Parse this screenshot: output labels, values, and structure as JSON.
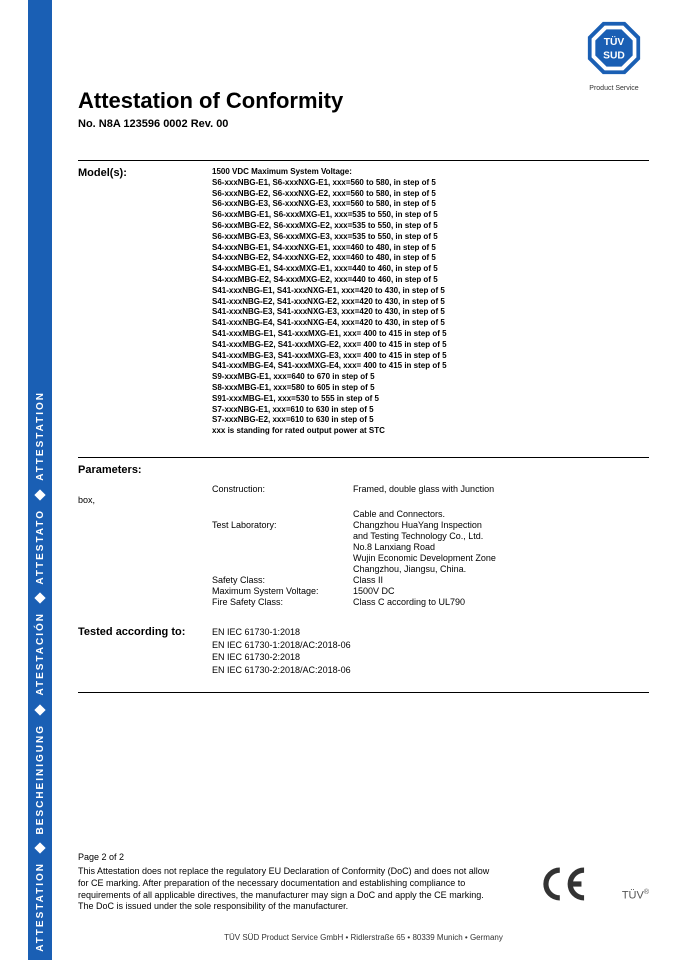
{
  "sideband": {
    "words": [
      "ATTESTATION",
      "BESCHEINIGUNG",
      "ATESTACIÓN",
      "ATTESTATO",
      "ATTESTATION"
    ],
    "bg_color": "#1a5fb4",
    "text_color": "#ffffff"
  },
  "logo": {
    "name": "TÜV SÜD",
    "top": "TÜV",
    "bottom": "SUD",
    "sublabel": "Product Service",
    "octagon_fill": "#1a5fb4",
    "inner_fill": "#ffffff"
  },
  "title": "Attestation of Conformity",
  "doc_number": "No. N8A 123596 0002 Rev. 00",
  "models": {
    "heading": "Model(s):",
    "voltage_line": "1500 VDC Maximum System Voltage:",
    "lines": [
      "S6-xxxNBG-E1, S6-xxxNXG-E1, xxx=560 to 580, in step of 5",
      "S6-xxxNBG-E2, S6-xxxNXG-E2, xxx=560 to 580, in step of 5",
      "S6-xxxNBG-E3, S6-xxxNXG-E3, xxx=560 to 580, in step of 5",
      "S6-xxxMBG-E1, S6-xxxMXG-E1, xxx=535 to 550, in step of 5",
      "S6-xxxMBG-E2, S6-xxxMXG-E2, xxx=535 to 550, in step of 5",
      "S6-xxxMBG-E3, S6-xxxMXG-E3, xxx=535 to 550, in step of 5",
      "S4-xxxNBG-E1, S4-xxxNXG-E1, xxx=460 to 480, in step of 5",
      "S4-xxxNBG-E2, S4-xxxNXG-E2, xxx=460 to 480, in step of 5",
      "S4-xxxMBG-E1, S4-xxxMXG-E1, xxx=440 to 460, in step of 5",
      "S4-xxxMBG-E2, S4-xxxMXG-E2, xxx=440 to 460, in step of 5",
      "S41-xxxNBG-E1, S41-xxxNXG-E1, xxx=420 to 430, in step of 5",
      "S41-xxxNBG-E2, S41-xxxNXG-E2, xxx=420 to 430, in step of 5",
      "S41-xxxNBG-E3, S41-xxxNXG-E3, xxx=420 to 430, in step of 5",
      "S41-xxxNBG-E4, S41-xxxNXG-E4, xxx=420 to 430, in step of 5",
      "S41-xxxMBG-E1, S41-xxxMXG-E1, xxx= 400 to 415 in step of 5",
      "S41-xxxMBG-E2, S41-xxxMXG-E2, xxx= 400 to 415 in step of 5",
      "S41-xxxMBG-E3, S41-xxxMXG-E3, xxx= 400 to 415 in step of 5",
      "S41-xxxMBG-E4, S41-xxxMXG-E4, xxx= 400 to 415 in step of 5",
      "S9-xxxMBG-E1, xxx=640 to 670 in step of 5",
      "S8-xxxMBG-E1, xxx=580 to 605 in step of 5",
      "S91-xxxMBG-E1, xxx=530 to 555 in step of 5",
      "S7-xxxNBG-E1, xxx=610 to 630 in step of 5",
      "S7-xxxNBG-E2, xxx=610 to 630 in step of 5",
      "xxx is standing for rated output power at STC"
    ]
  },
  "parameters": {
    "heading": "Parameters:",
    "box_note": "box,",
    "rows": [
      {
        "label": "Construction:",
        "value": "Framed, double glass with Junction"
      },
      {
        "label": "",
        "value": "Cable and Connectors."
      },
      {
        "label": "Test Laboratory:",
        "value": "Changzhou HuaYang Inspection"
      },
      {
        "label": "",
        "value": "and Testing Technology Co., Ltd."
      },
      {
        "label": "",
        "value": "No.8 Lanxiang Road"
      },
      {
        "label": "",
        "value": "Wujin Economic Development Zone"
      },
      {
        "label": "",
        "value": "Changzhou, Jiangsu, China."
      },
      {
        "label": "Safety Class:",
        "value": "Class II"
      },
      {
        "label": "Maximum System Voltage:",
        "value": "1500V DC"
      },
      {
        "label": "Fire Safety Class:",
        "value": "Class C according to UL790"
      }
    ]
  },
  "tested": {
    "heading": "Tested according to:",
    "lines": [
      "EN IEC 61730-1:2018",
      "EN IEC 61730-1:2018/AC:2018-06",
      "EN IEC 61730-2:2018",
      "EN IEC 61730-2:2018/AC:2018-06"
    ]
  },
  "footer": {
    "page": "Page 2 of 2",
    "disclaimer": "This Attestation does not replace the regulatory EU Declaration of Conformity (DoC) and does not allow for CE marking. After preparation of the necessary documentation and establishing compliance to requirements of all applicable directives, the manufacturer may sign a DoC and apply the CE marking. The DoC is issued under the sole responsibility of the manufacturer.",
    "company_line": "TÜV SÜD Product Service GmbH • Ridlerstraße 65 • 80339 Munich • Germany",
    "tuv_mark": "TÜV"
  },
  "colors": {
    "text": "#000000",
    "rule": "#000000",
    "footer_text": "#333333"
  }
}
